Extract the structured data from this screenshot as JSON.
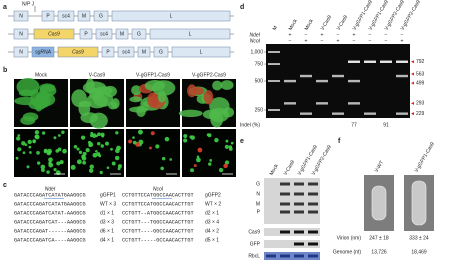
{
  "panel_a": {
    "label": "a",
    "junction": "N/P J",
    "constructs": [
      [
        "N",
        "P",
        "sc4",
        "M",
        "G",
        "L"
      ],
      [
        "N",
        "Cas9",
        "P",
        "sc4",
        "M",
        "G",
        "L"
      ],
      [
        "N",
        "sgRNA",
        "Cas9",
        "P",
        "sc4",
        "M",
        "G",
        "L"
      ]
    ]
  },
  "panel_b": {
    "label": "b",
    "columns": [
      "Mock",
      "V-Cas9",
      "V-gGFP1-Cas9",
      "V-gGFP2-Cas9"
    ]
  },
  "panel_c": {
    "label": "c",
    "left": {
      "site": "NdeI",
      "target": "GATACCCAGATCATATGAAGGCG",
      "target_name": "gGFP1",
      "alleles": [
        [
          "GATACCCAGATCATATGAAGGCG",
          "WT × 3"
        ],
        [
          "GATACCCAGATCATAT-AAGGCG",
          "d1 × 1"
        ],
        [
          "GATACCCAGATCAT---AAGGCG",
          "d3 × 3"
        ],
        [
          "GATACCCAGAT------AAGGCG",
          "d6 × 1"
        ],
        [
          "GATACCCAGATCA----AAGGCG",
          "d4 × 1"
        ]
      ]
    },
    "right": {
      "site": "NcoI",
      "target": "CCTGTTCCATGGCCAACACTTGT",
      "target_name": "gGFP2",
      "alleles": [
        [
          "CCTGTTCCATGGCCAACACTTGT",
          "WT × 2"
        ],
        [
          "CCTGTT--ATGGCCAACACTTGT",
          "d2 × 1"
        ],
        [
          "CCTGTT---TGGCCAACACTTGT",
          "d3 × 4"
        ],
        [
          "CCTGTT----GGCCAACACTTGT",
          "d4 × 2"
        ],
        [
          "CCTGTT-----GCCAACACTTGT",
          "d5 × 1"
        ]
      ]
    }
  },
  "panel_d": {
    "label": "d",
    "marker": "M",
    "lanes": [
      "Mock",
      "Mock",
      "V-Cas9",
      "V-Cas9",
      "V-gGFP1-Cas9",
      "V-gGFP1-Cas9",
      "V-gGFP2-Cas9",
      "V-gGFP2-Cas9"
    ],
    "enzymes": [
      {
        "name": "NdeI",
        "signs": [
          "+",
          "−",
          "+",
          "−",
          "+",
          "−",
          "−",
          "−"
        ]
      },
      {
        "name": "NcoI",
        "signs": [
          "−",
          "+",
          "−",
          "+",
          "−",
          "−",
          "−",
          "+"
        ]
      }
    ],
    "ladder": [
      {
        "value": 1000,
        "label": "1,000"
      },
      750,
      500,
      250
    ],
    "sizes": [
      792,
      563,
      499,
      293,
      229
    ],
    "indel_label": "Indel (%)",
    "indel": [
      77,
      91
    ]
  },
  "panel_e": {
    "label": "e",
    "lanes": [
      "Mock",
      "V-Cas9",
      "V-gGFP1-Cas9",
      "V-gGFP2-Cas9"
    ],
    "proteins": [
      "G",
      "N",
      "M",
      "P"
    ],
    "blots": [
      "Cas9",
      "GFP",
      "RbcL"
    ]
  },
  "panel_f": {
    "label": "f",
    "images": [
      "V-WT",
      "V-gGFP1-Cas9"
    ],
    "virion_label": "Virion (nm)",
    "virion": [
      "247 ± 18",
      "333 ± 24"
    ],
    "genome_label": "Genome (nt)",
    "genome": [
      "13,726",
      "18,469"
    ]
  }
}
